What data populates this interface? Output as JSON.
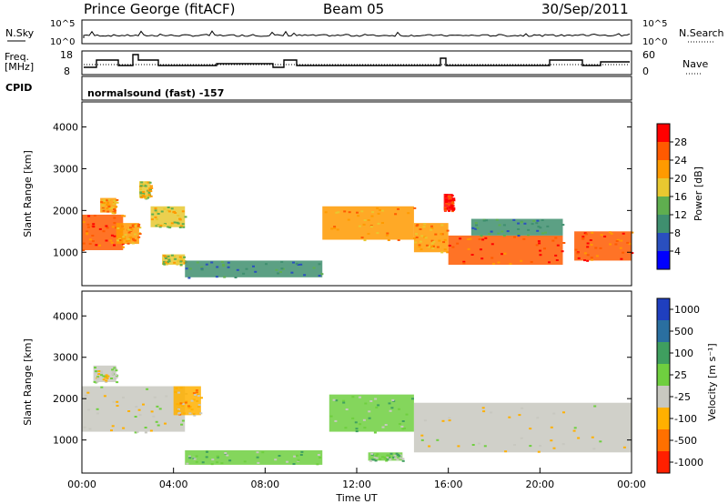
{
  "header": {
    "title": "Prince George (fitACF)",
    "beam": "Beam 05",
    "date": "30/Sep/2011"
  },
  "strips": {
    "nsky_label": "N.Sky",
    "nsky_ticks": [
      "10^5",
      "10^0"
    ],
    "nsearch_label": "N.Search",
    "nsearch_ticks": [
      "10^5",
      "10^0"
    ],
    "freq_label_1": "Freq.",
    "freq_label_2": "[MHz]",
    "freq_ticks": [
      "18",
      "8"
    ],
    "nave_label": "Nave",
    "nave_ticks": [
      "60",
      "0"
    ],
    "cpid_label": "CPID",
    "cpid_text": "normalsound (fast) -157"
  },
  "chart_data": [
    {
      "type": "heatmap",
      "name": "power",
      "ylabel": "Slant Range [km]",
      "yticks": [
        "1000",
        "2000",
        "3000",
        "4000"
      ],
      "ylim": [
        200,
        4600
      ],
      "xlim": [
        0,
        24
      ],
      "colorbar_label": "Power [dB]",
      "colorbar_ticks": [
        "4",
        "8",
        "12",
        "16",
        "20",
        "24",
        "28"
      ],
      "colors": [
        "#0000ff",
        "#2a4fbf",
        "#3f8f6f",
        "#5fae4f",
        "#e8c830",
        "#ff9a00",
        "#ff5a00",
        "#ff0000"
      ],
      "regions": [
        {
          "x": [
            0.0,
            1.8
          ],
          "y": [
            1050,
            1900
          ],
          "value": 24
        },
        {
          "x": [
            0.8,
            1.5
          ],
          "y": [
            1950,
            2300
          ],
          "value": 22
        },
        {
          "x": [
            1.5,
            2.5
          ],
          "y": [
            1200,
            1700
          ],
          "value": 20
        },
        {
          "x": [
            2.5,
            3.0
          ],
          "y": [
            2300,
            2700
          ],
          "value": 18
        },
        {
          "x": [
            3.0,
            4.5
          ],
          "y": [
            1600,
            2100
          ],
          "value": 16
        },
        {
          "x": [
            3.5,
            4.5
          ],
          "y": [
            700,
            950
          ],
          "value": 18
        },
        {
          "x": [
            4.5,
            10.5
          ],
          "y": [
            400,
            800
          ],
          "value": 10
        },
        {
          "x": [
            10.5,
            14.5
          ],
          "y": [
            1300,
            2100
          ],
          "value": 22
        },
        {
          "x": [
            14.5,
            16.0
          ],
          "y": [
            1000,
            1700
          ],
          "value": 20
        },
        {
          "x": [
            16.0,
            21.0
          ],
          "y": [
            700,
            1400
          ],
          "value": 26
        },
        {
          "x": [
            17.0,
            21.0
          ],
          "y": [
            1400,
            1800
          ],
          "value": 10
        },
        {
          "x": [
            21.5,
            24.0
          ],
          "y": [
            800,
            1500
          ],
          "value": 26
        },
        {
          "x": [
            15.8,
            16.2
          ],
          "y": [
            2000,
            2400
          ],
          "value": 28
        }
      ]
    },
    {
      "type": "heatmap",
      "name": "velocity",
      "ylabel": "Slant Range [km]",
      "yticks": [
        "1000",
        "2000",
        "3000",
        "4000"
      ],
      "ylim": [
        200,
        4600
      ],
      "xlim": [
        0,
        24
      ],
      "xlabel": "Time UT",
      "xticks": [
        "00:00",
        "04:00",
        "08:00",
        "12:00",
        "16:00",
        "20:00",
        "00:00"
      ],
      "colorbar_label": "Velocity [m s⁻¹]",
      "colorbar_ticks": [
        "1000",
        "500",
        "100",
        "25",
        "-25",
        "-100",
        "-500",
        "-1000"
      ],
      "colors": [
        "#1f3fbf",
        "#2a6fa0",
        "#3f9f5f",
        "#6fcf3f",
        "#c8c8c0",
        "#ffb000",
        "#ff7000",
        "#ff2000"
      ],
      "regions": [
        {
          "x": [
            0.0,
            4.5
          ],
          "y": [
            1200,
            2300
          ],
          "value": 0
        },
        {
          "x": [
            0.5,
            1.5
          ],
          "y": [
            2400,
            2800
          ],
          "value": 0
        },
        {
          "x": [
            4.0,
            5.2
          ],
          "y": [
            1600,
            2300
          ],
          "value": -300
        },
        {
          "x": [
            4.5,
            10.5
          ],
          "y": [
            400,
            750
          ],
          "value": 60
        },
        {
          "x": [
            10.8,
            14.5
          ],
          "y": [
            1200,
            2100
          ],
          "value": 60
        },
        {
          "x": [
            14.5,
            24.0
          ],
          "y": [
            700,
            1900
          ],
          "value": 0
        },
        {
          "x": [
            12.5,
            14.0
          ],
          "y": [
            500,
            700
          ],
          "value": 60
        }
      ]
    }
  ]
}
